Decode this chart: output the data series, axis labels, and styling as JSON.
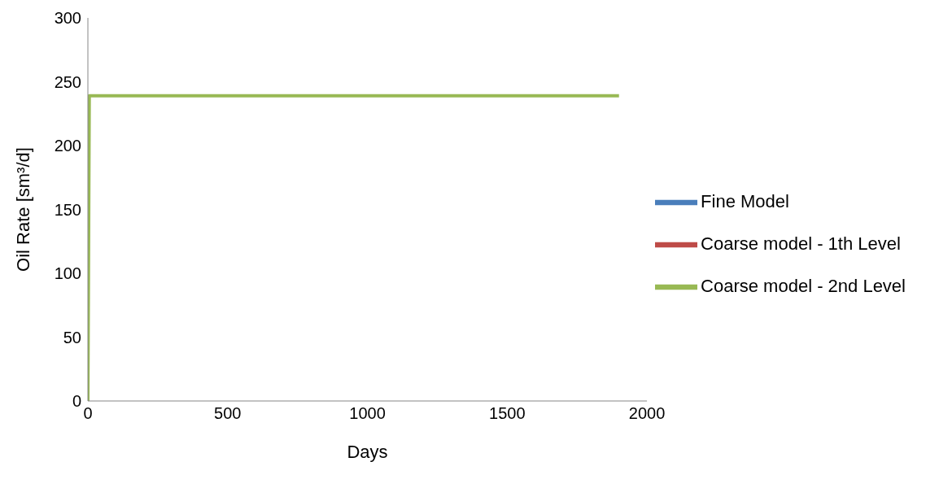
{
  "chart_data": {
    "type": "line",
    "xlabel": "Days",
    "ylabel": "Oil Rate [sm³/d]",
    "xlim": [
      0,
      2000
    ],
    "xticks": [
      0,
      500,
      1000,
      1500,
      2000
    ],
    "ylim": [
      0,
      300
    ],
    "yticks": [
      0,
      50,
      100,
      150,
      200,
      250,
      300
    ],
    "grid": false,
    "legend": "right",
    "marker": "none",
    "line_style": "solid",
    "series": [
      {
        "name": "Fine Model",
        "color": "#4a7ebb"
      },
      {
        "name": "Coarse model - 1th Level",
        "color": "#be4b48"
      },
      {
        "name": "Coarse model - 2nd Level",
        "color": "#98b954",
        "x": [
          0,
          5,
          1900
        ],
        "values": [
          0,
          239,
          239
        ]
      }
    ]
  }
}
